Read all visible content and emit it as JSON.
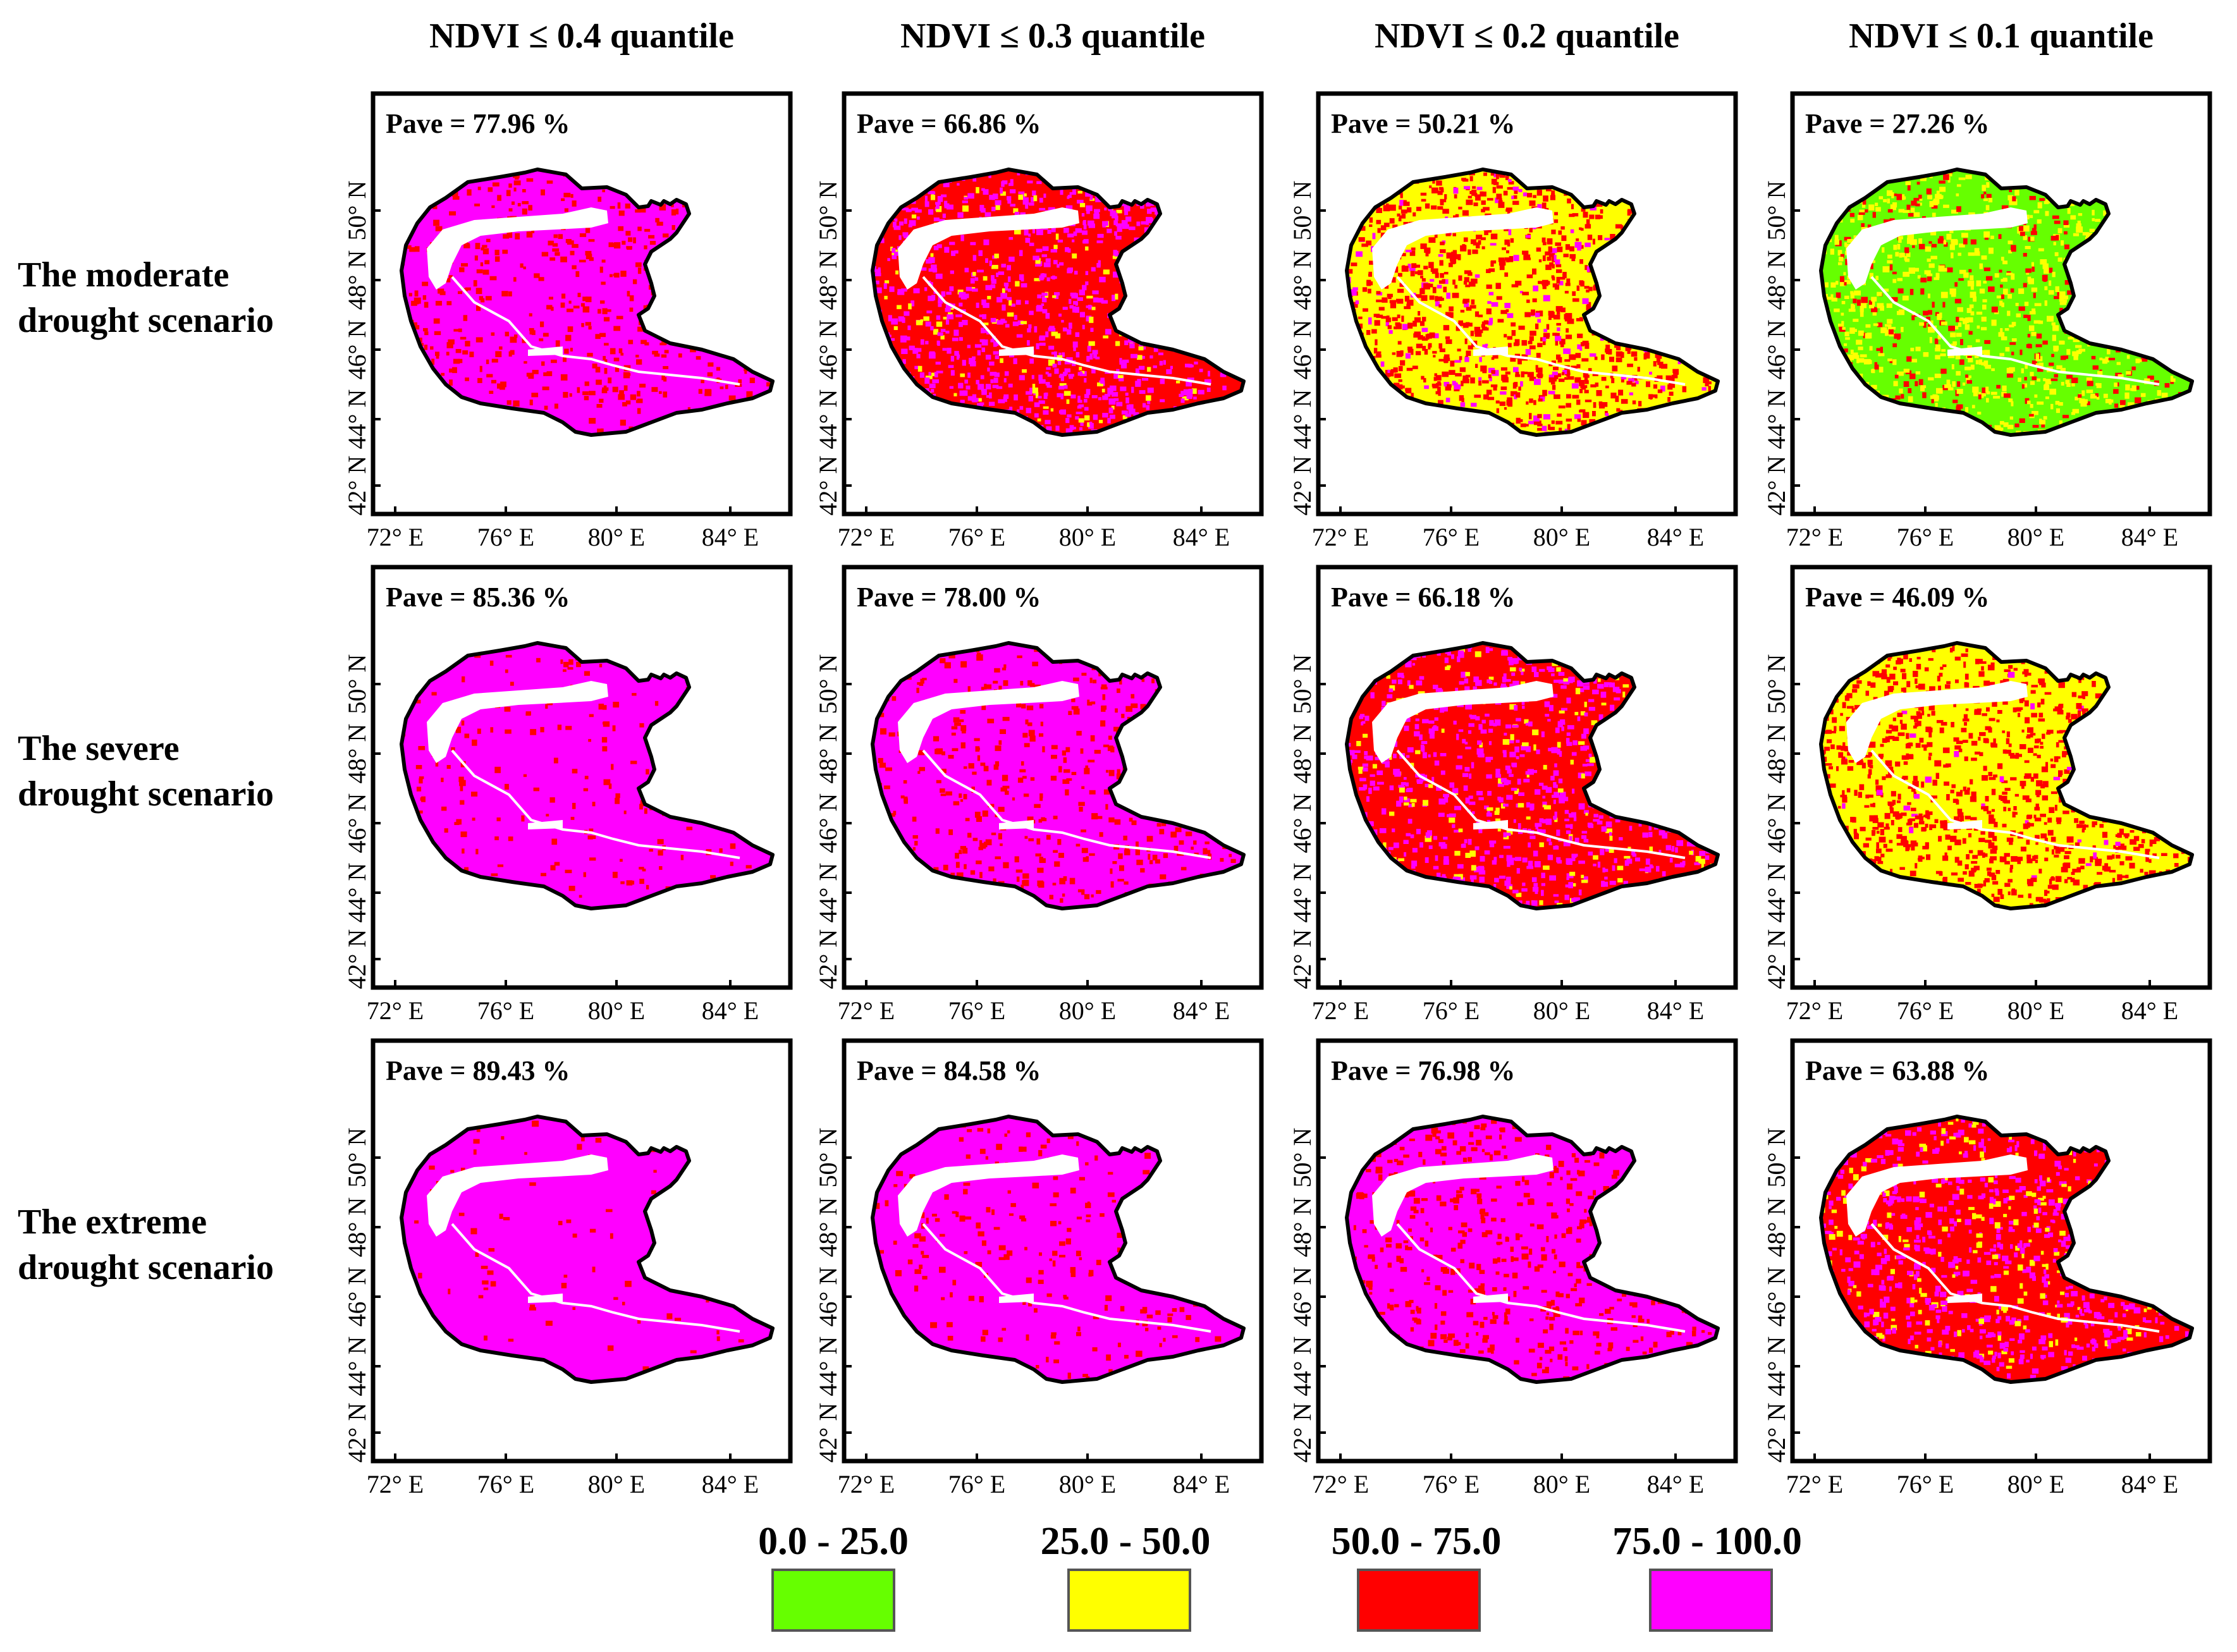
{
  "figure": {
    "column_headers": [
      "NDVI ≤ 0.4 quantile",
      "NDVI ≤ 0.3 quantile",
      "NDVI ≤ 0.2 quantile",
      "NDVI ≤ 0.1 quantile"
    ],
    "row_headers": [
      [
        "The moderate",
        "drought scenario"
      ],
      [
        "The severe",
        "drought scenario"
      ],
      [
        "The extreme",
        "drought scenario"
      ]
    ],
    "lat_labels": [
      "42° N",
      "44° N",
      "46° N",
      "48° N",
      "50° N"
    ],
    "lon_labels": [
      "72° E",
      "76° E",
      "80° E",
      "84° E"
    ],
    "pave_labels": [
      [
        "Pave = 77.96 %",
        "Pave = 66.86 %",
        "Pave = 50.21 %",
        "Pave = 27.26 %"
      ],
      [
        "Pave = 85.36 %",
        "Pave = 78.00 %",
        "Pave = 66.18 %",
        "Pave = 46.09 %"
      ],
      [
        "Pave = 89.43 %",
        "Pave = 84.58 %",
        "Pave = 76.98 %",
        "Pave = 63.88 %"
      ]
    ],
    "pave_values": [
      [
        77.96,
        66.86,
        50.21,
        27.26
      ],
      [
        85.36,
        78.0,
        66.18,
        46.09
      ],
      [
        89.43,
        84.58,
        76.98,
        63.88
      ]
    ],
    "legend": [
      {
        "label": "0.0 - 25.0",
        "color": "#66ff00"
      },
      {
        "label": "25.0 - 50.0",
        "color": "#ffff00"
      },
      {
        "label": "50.0 - 75.0",
        "color": "#ff0000"
      },
      {
        "label": "75.0 - 100.0",
        "color": "#ff00ff"
      }
    ]
  }
}
